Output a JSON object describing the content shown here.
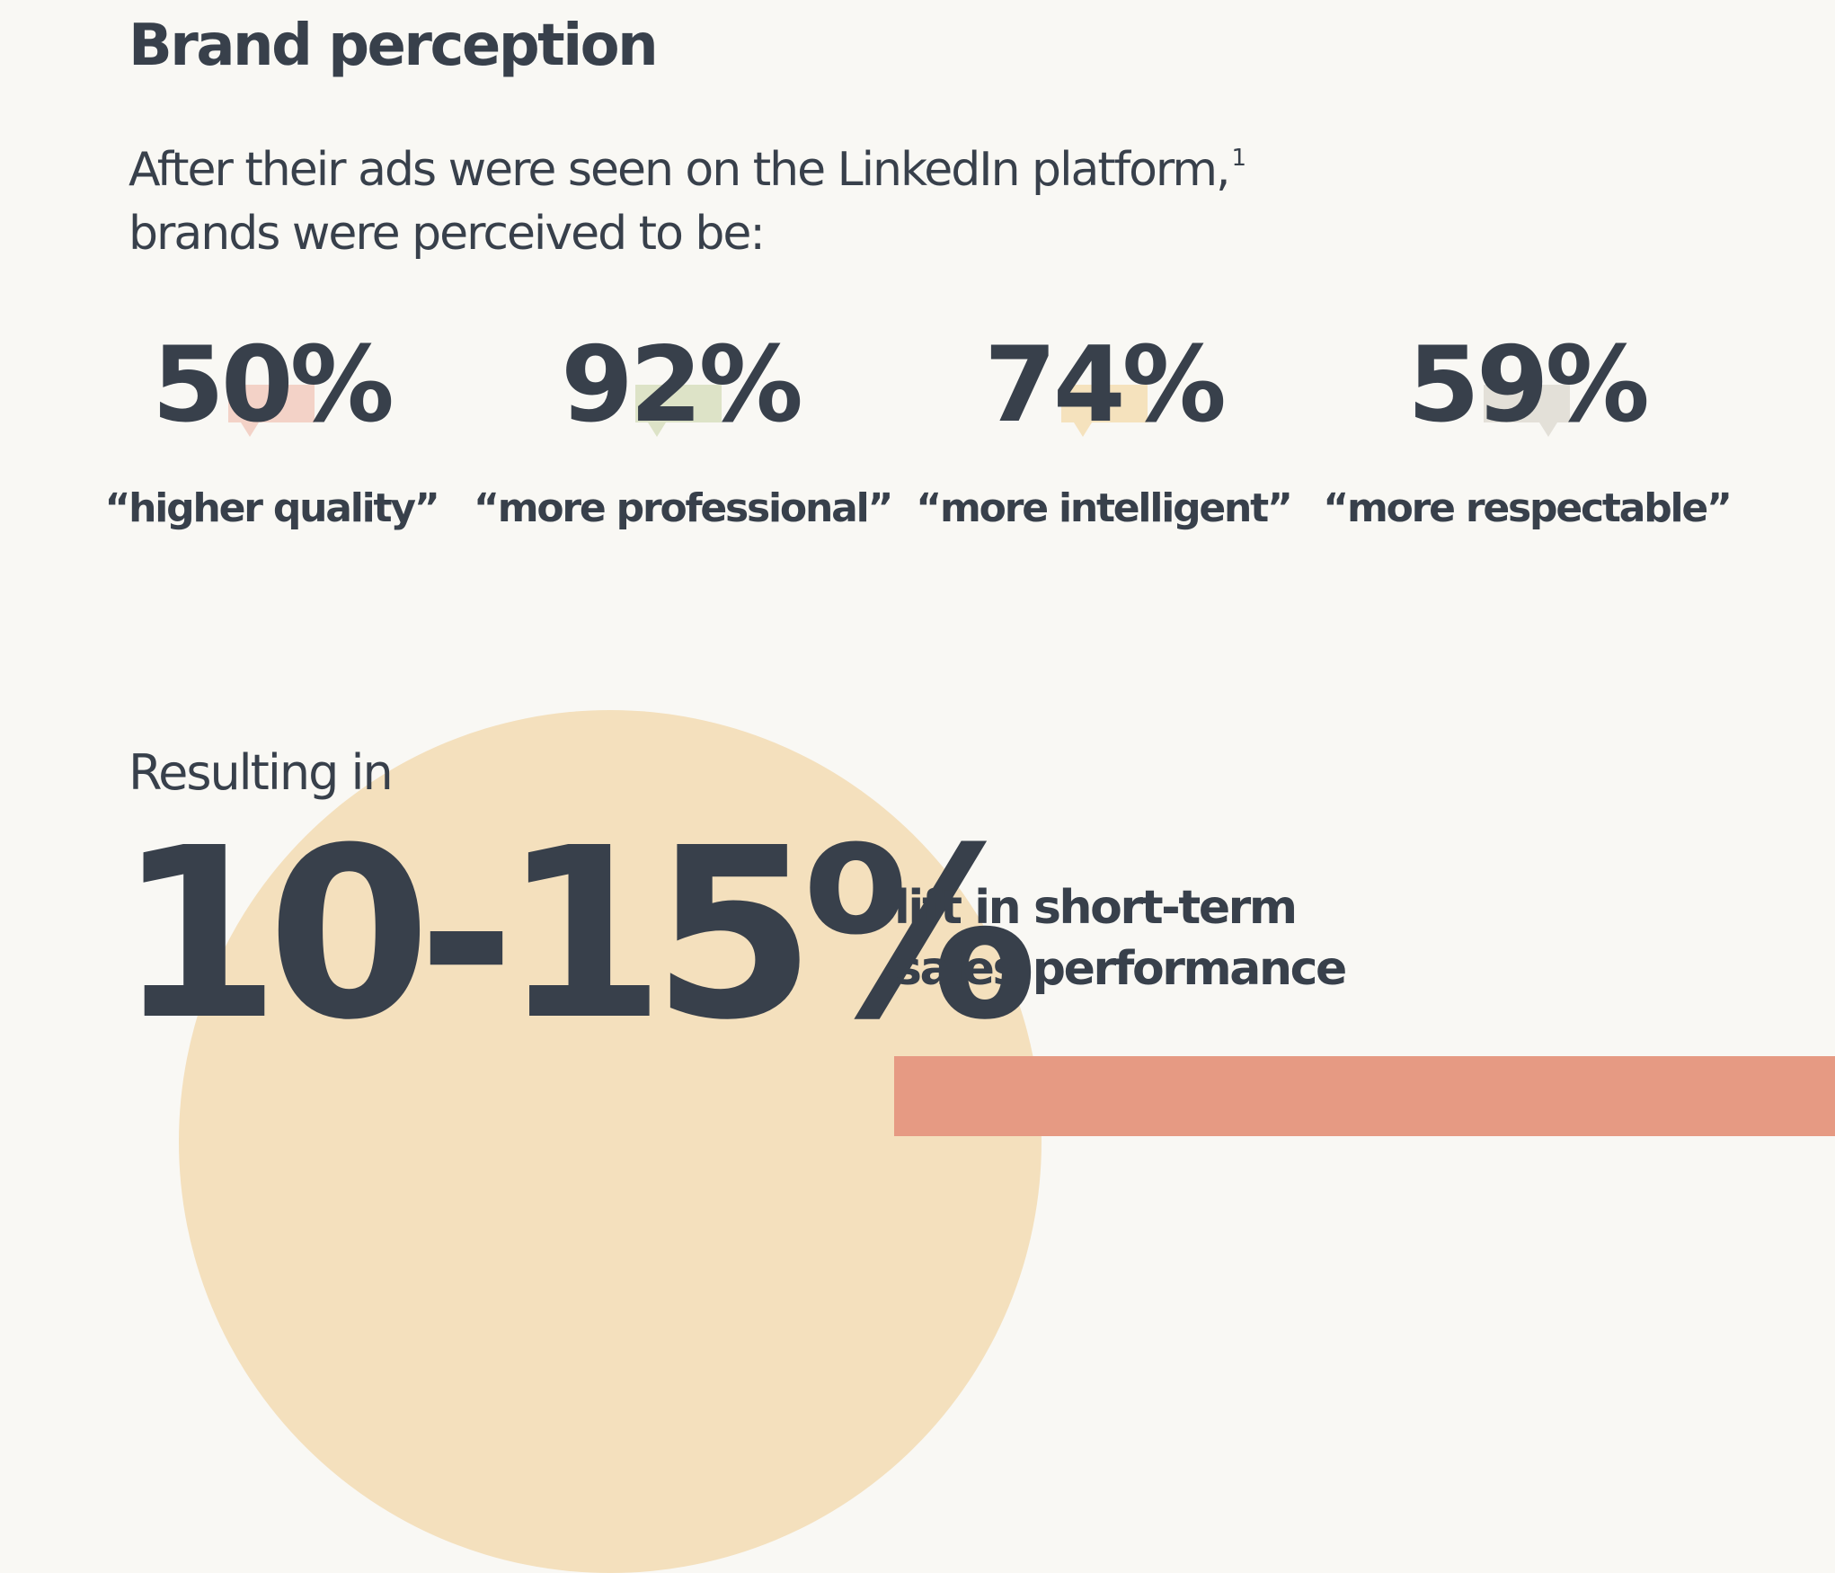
{
  "title": "Brand perception",
  "intro": {
    "line1": "After their ads were seen on the LinkedIn platform,",
    "footnote": "1",
    "line2": "brands were perceived to be:"
  },
  "stats": [
    {
      "value": "50%",
      "label": "“higher quality”",
      "bubble_color": "#f3d2c7"
    },
    {
      "value": "92%",
      "label": "“more professional”",
      "bubble_color": "#dde3c7"
    },
    {
      "value": "74%",
      "label": "“more intelligent”",
      "bubble_color": "#f5e2bd"
    },
    {
      "value": "59%",
      "label": "“more respectable”",
      "bubble_color": "#e3e0d8"
    }
  ],
  "result": {
    "label": "Resulting in",
    "value": "10-15%",
    "description_line1": "lift in short-term",
    "description_line2": "sales performance"
  },
  "colors": {
    "background": "#f9f8f4",
    "text": "#38404b",
    "circle": "#f4e0bd",
    "accent_block": "#e69a83"
  }
}
